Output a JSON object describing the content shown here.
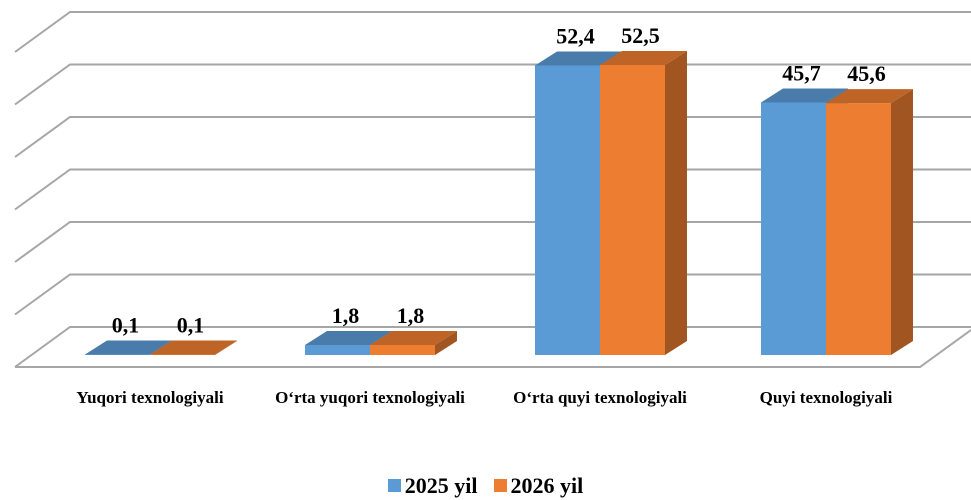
{
  "chart_data": {
    "type": "bar3d",
    "categories": [
      "Yuqori texnologiyali",
      "O‘rta yuqori texnologiyali",
      "O‘rta quyi texnologiyali",
      "Quyi texnologiyali"
    ],
    "series": [
      {
        "name": "2025 yil",
        "color": "#5b9bd5",
        "values": [
          0.1,
          1.8,
          52.4,
          45.7
        ],
        "value_labels": [
          "0,1",
          "1,8",
          "52,4",
          "45,7"
        ]
      },
      {
        "name": "2026 yil",
        "color": "#ed7d31",
        "values": [
          0.1,
          1.8,
          52.5,
          45.6
        ],
        "value_labels": [
          "0,1",
          "1,8",
          "52,5",
          "45,6"
        ]
      }
    ],
    "ylim": [
      0,
      60
    ],
    "yticks": [
      0,
      10,
      20,
      30,
      40,
      50,
      60
    ],
    "grid": true,
    "legend": "bottom"
  }
}
